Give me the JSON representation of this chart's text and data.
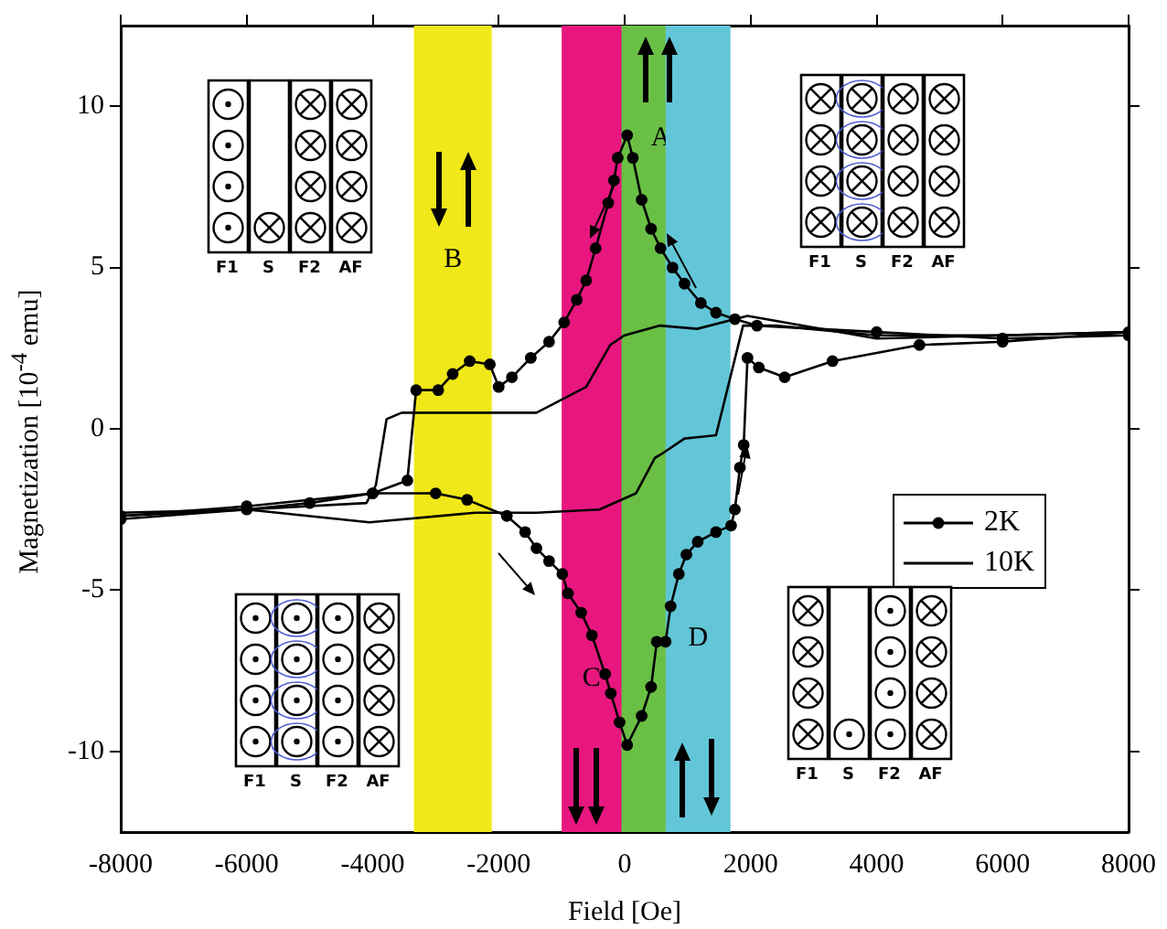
{
  "chart_data": {
    "type": "line",
    "xlabel": "Field [Oe]",
    "ylabel": "Magnetization  [10$^{-4}$ emu]",
    "xlim": [
      -8000,
      8000
    ],
    "xticks": [
      -8000,
      -6000,
      -4000,
      -2000,
      0,
      2000,
      4000,
      6000,
      8000
    ],
    "ylim": [
      -12.5,
      12.5
    ],
    "yticks": [
      -10,
      -5,
      0,
      5,
      10
    ],
    "grid": false,
    "legend": "right",
    "series": [
      {
        "name": "2K",
        "color": "#000000",
        "marker": "circle",
        "x": [
          8000,
          6000,
          4000,
          2100,
          1750,
          1450,
          1210,
          950,
          760,
          570,
          420,
          270,
          130,
          40,
          -110,
          -170,
          -260,
          -460,
          -610,
          -760,
          -960,
          -1200,
          -1490,
          -1790,
          -2000,
          -2140,
          -2460,
          -2730,
          -2960,
          -3310,
          -3450,
          -4000,
          -5000,
          -6000,
          -8000,
          -8000,
          -6000,
          -4000,
          -3000,
          -2500,
          -1870,
          -1580,
          -1400,
          -1200,
          -990,
          -900,
          -690,
          -520,
          -310,
          -220,
          -80,
          40,
          270,
          420,
          510,
          650,
          730,
          860,
          980,
          1160,
          1450,
          1690,
          1750,
          1830,
          1890,
          1950,
          2130,
          2540,
          3300,
          4680,
          6000,
          8000
        ],
        "values": [
          2.9,
          2.8,
          3.0,
          3.2,
          3.4,
          3.6,
          3.9,
          4.5,
          5.0,
          5.6,
          6.2,
          7.1,
          8.4,
          9.1,
          8.4,
          7.7,
          7.0,
          5.6,
          4.6,
          4.0,
          3.3,
          2.7,
          2.2,
          1.6,
          1.3,
          2.0,
          2.1,
          1.7,
          1.2,
          1.2,
          -1.6,
          -2.0,
          -2.3,
          -2.5,
          -2.8,
          -2.7,
          -2.4,
          -2.0,
          -2.0,
          -2.2,
          -2.7,
          -3.2,
          -3.7,
          -4.1,
          -4.5,
          -5.1,
          -5.7,
          -6.4,
          -7.6,
          -8.2,
          -9.1,
          -9.8,
          -8.9,
          -8.0,
          -6.6,
          -6.6,
          -5.5,
          -4.5,
          -3.9,
          -3.5,
          -3.2,
          -3.0,
          -2.5,
          -1.2,
          -0.5,
          2.2,
          1.9,
          1.6,
          2.1,
          2.6,
          2.7,
          3.0
        ]
      },
      {
        "name": "10K",
        "color": "#000000",
        "marker": "none",
        "x": [
          8000,
          6000,
          4000,
          1950,
          1150,
          560,
          0,
          -230,
          -610,
          -1400,
          -2370,
          -3540,
          -3780,
          -3950,
          -4100,
          -6000,
          -8000
        ],
        "values": [
          3.0,
          2.9,
          2.8,
          3.5,
          3.1,
          3.2,
          2.9,
          2.6,
          1.3,
          0.5,
          0.5,
          0.5,
          0.3,
          -1.75,
          -2.3,
          -2.5,
          -2.6
        ]
      },
      {
        "color": "#000000",
        "marker": "none",
        "x": [
          -8000,
          -6000,
          -4050,
          -2370,
          -1400,
          -400,
          180,
          480,
          570,
          950,
          1450,
          1880,
          2400,
          4000,
          6000,
          8000
        ],
        "values": [
          -2.7,
          -2.5,
          -2.9,
          -2.6,
          -2.6,
          -2.5,
          -2.0,
          -0.9,
          -0.8,
          -0.3,
          -0.2,
          3.2,
          3.2,
          2.9,
          2.9,
          3.0
        ]
      }
    ],
    "bands": [
      {
        "axis": "x",
        "from": -100,
        "to": 1250,
        "label": "A",
        "color": "#6abf45"
      },
      {
        "axis": "x",
        "from": -3345,
        "to": -2110,
        "label": "B",
        "color": "#f0e818"
      },
      {
        "axis": "x",
        "from": -1000,
        "to": -50,
        "label": "C",
        "color": "#e8177f"
      },
      {
        "axis": "x",
        "from": 650,
        "to": 1680,
        "label": "D",
        "color": "#62c6d8"
      }
    ],
    "annotations": [
      "F1",
      "S",
      "F2",
      "AF",
      "F1",
      "S",
      "F2",
      "AF",
      "F1",
      "S",
      "F2",
      "AF",
      "F1",
      "S",
      "F2",
      "AF"
    ]
  }
}
